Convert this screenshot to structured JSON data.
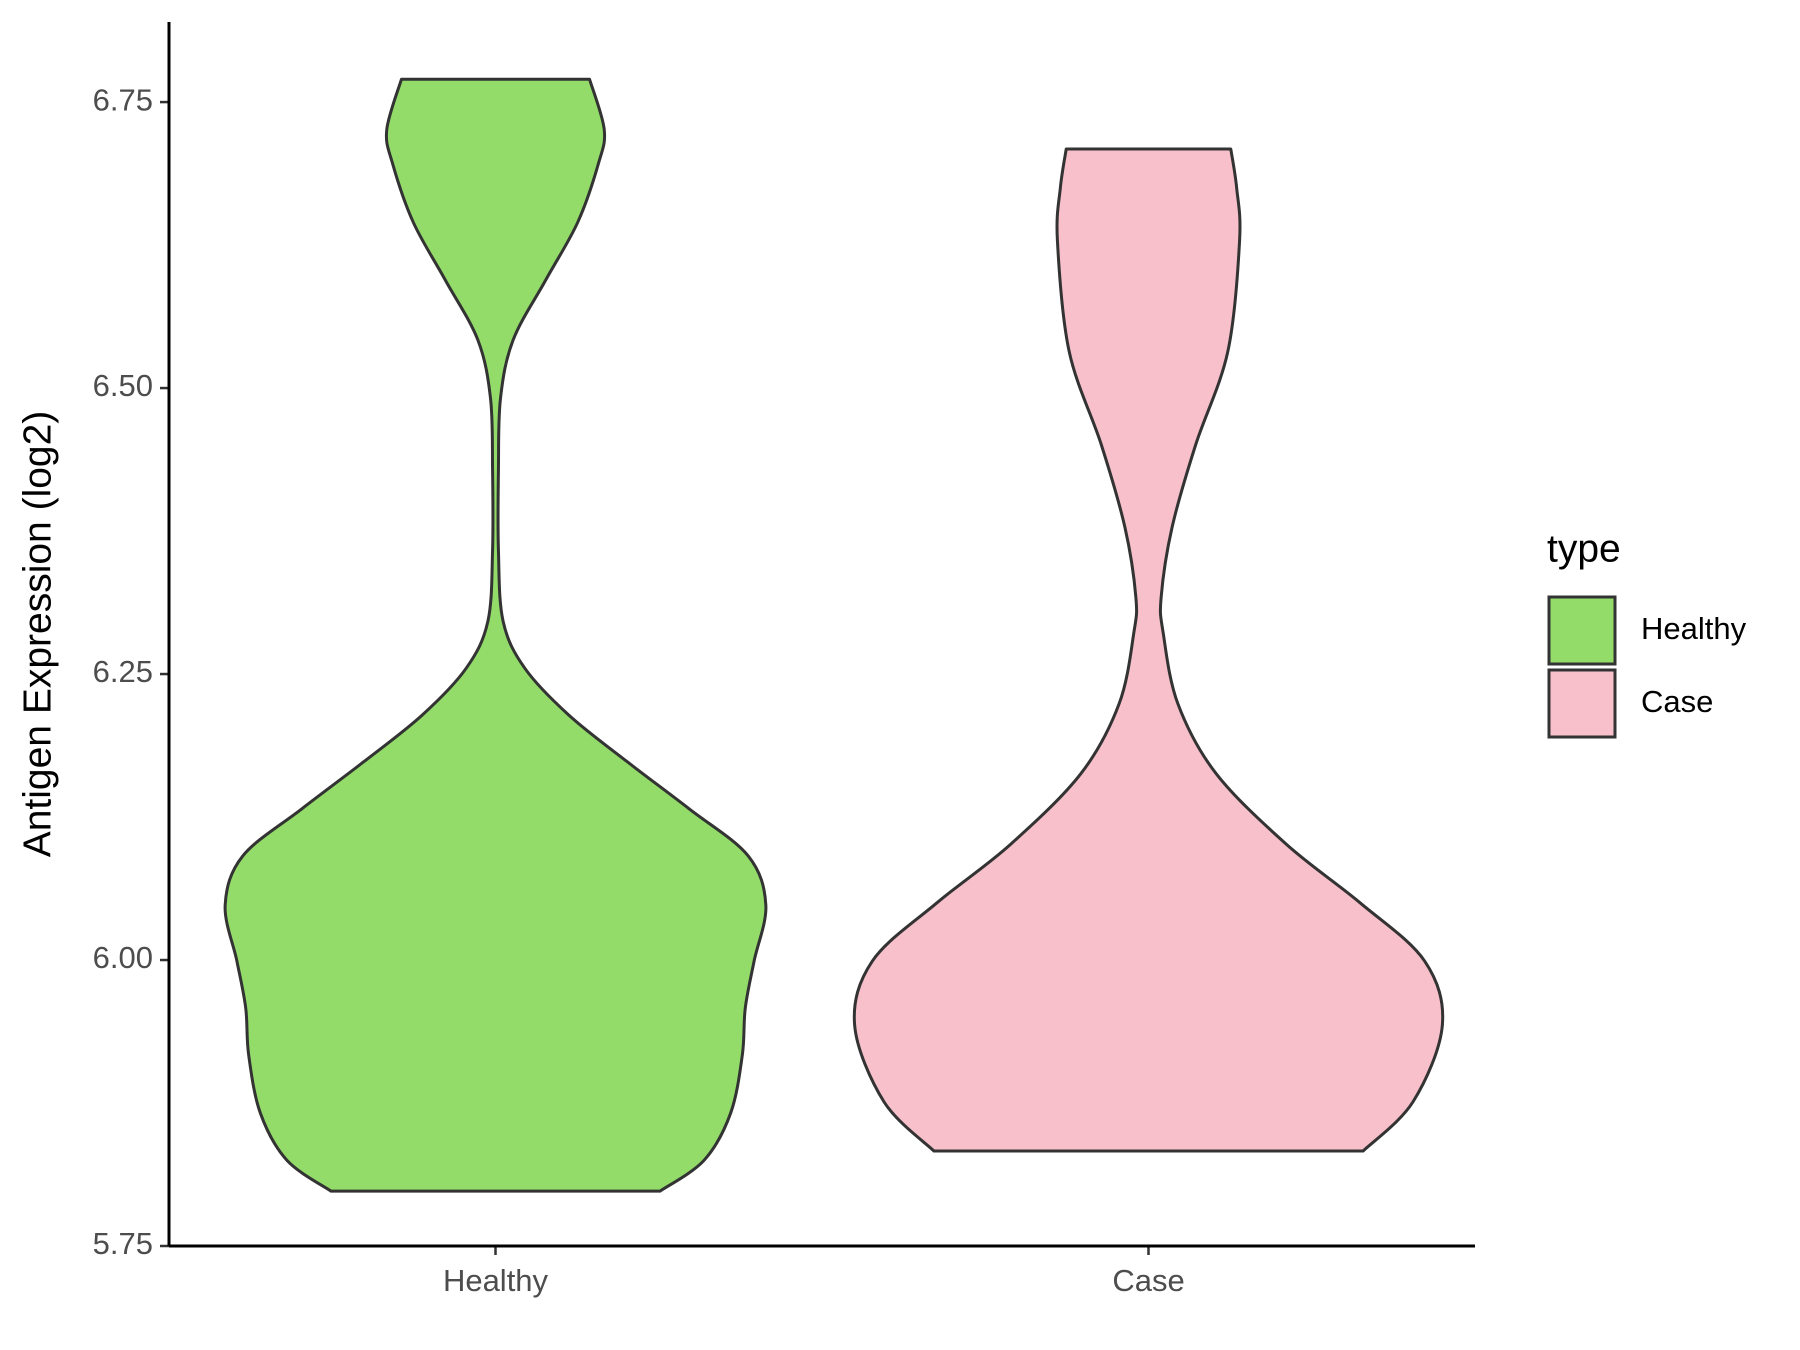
{
  "chart_data": {
    "type": "violin",
    "y_label": "Antigen Expression (log2)",
    "legend_title": "type",
    "categories": [
      "Healthy",
      "Case"
    ],
    "ylim": [
      5.75,
      6.82
    ],
    "yticks": [
      5.75,
      {
        "value": 6,
        "label": "6.00"
      },
      6.25,
      {
        "value": 6.5,
        "label": "6.50"
      },
      6.75
    ],
    "legend_position": "right",
    "series": [
      {
        "name": "Healthy",
        "color": "#93DC6A",
        "y": [
          5.798,
          5.825,
          5.866,
          5.917,
          5.958,
          5.999,
          6.048,
          6.091,
          6.132,
          6.173,
          6.214,
          6.255,
          6.296,
          6.358,
          6.429,
          6.491,
          6.542,
          6.594,
          6.645,
          6.696,
          6.726,
          6.77
        ],
        "width": [
          0.56,
          0.71,
          0.8,
          0.84,
          0.85,
          0.88,
          0.92,
          0.86,
          0.66,
          0.45,
          0.25,
          0.1,
          0.026,
          0.01,
          0.01,
          0.017,
          0.06,
          0.17,
          0.28,
          0.35,
          0.37,
          0.32
        ]
      },
      {
        "name": "Case",
        "color": "#F7C0CB",
        "y": [
          5.833,
          5.876,
          5.943,
          5.999,
          6.05,
          6.101,
          6.163,
          6.224,
          6.286,
          6.317,
          6.378,
          6.45,
          6.532,
          6.629,
          6.675,
          6.709
        ],
        "width": [
          0.73,
          0.9,
          1.0,
          0.94,
          0.72,
          0.47,
          0.23,
          0.1,
          0.05,
          0.043,
          0.08,
          0.16,
          0.27,
          0.31,
          0.3,
          0.28
        ]
      }
    ]
  }
}
